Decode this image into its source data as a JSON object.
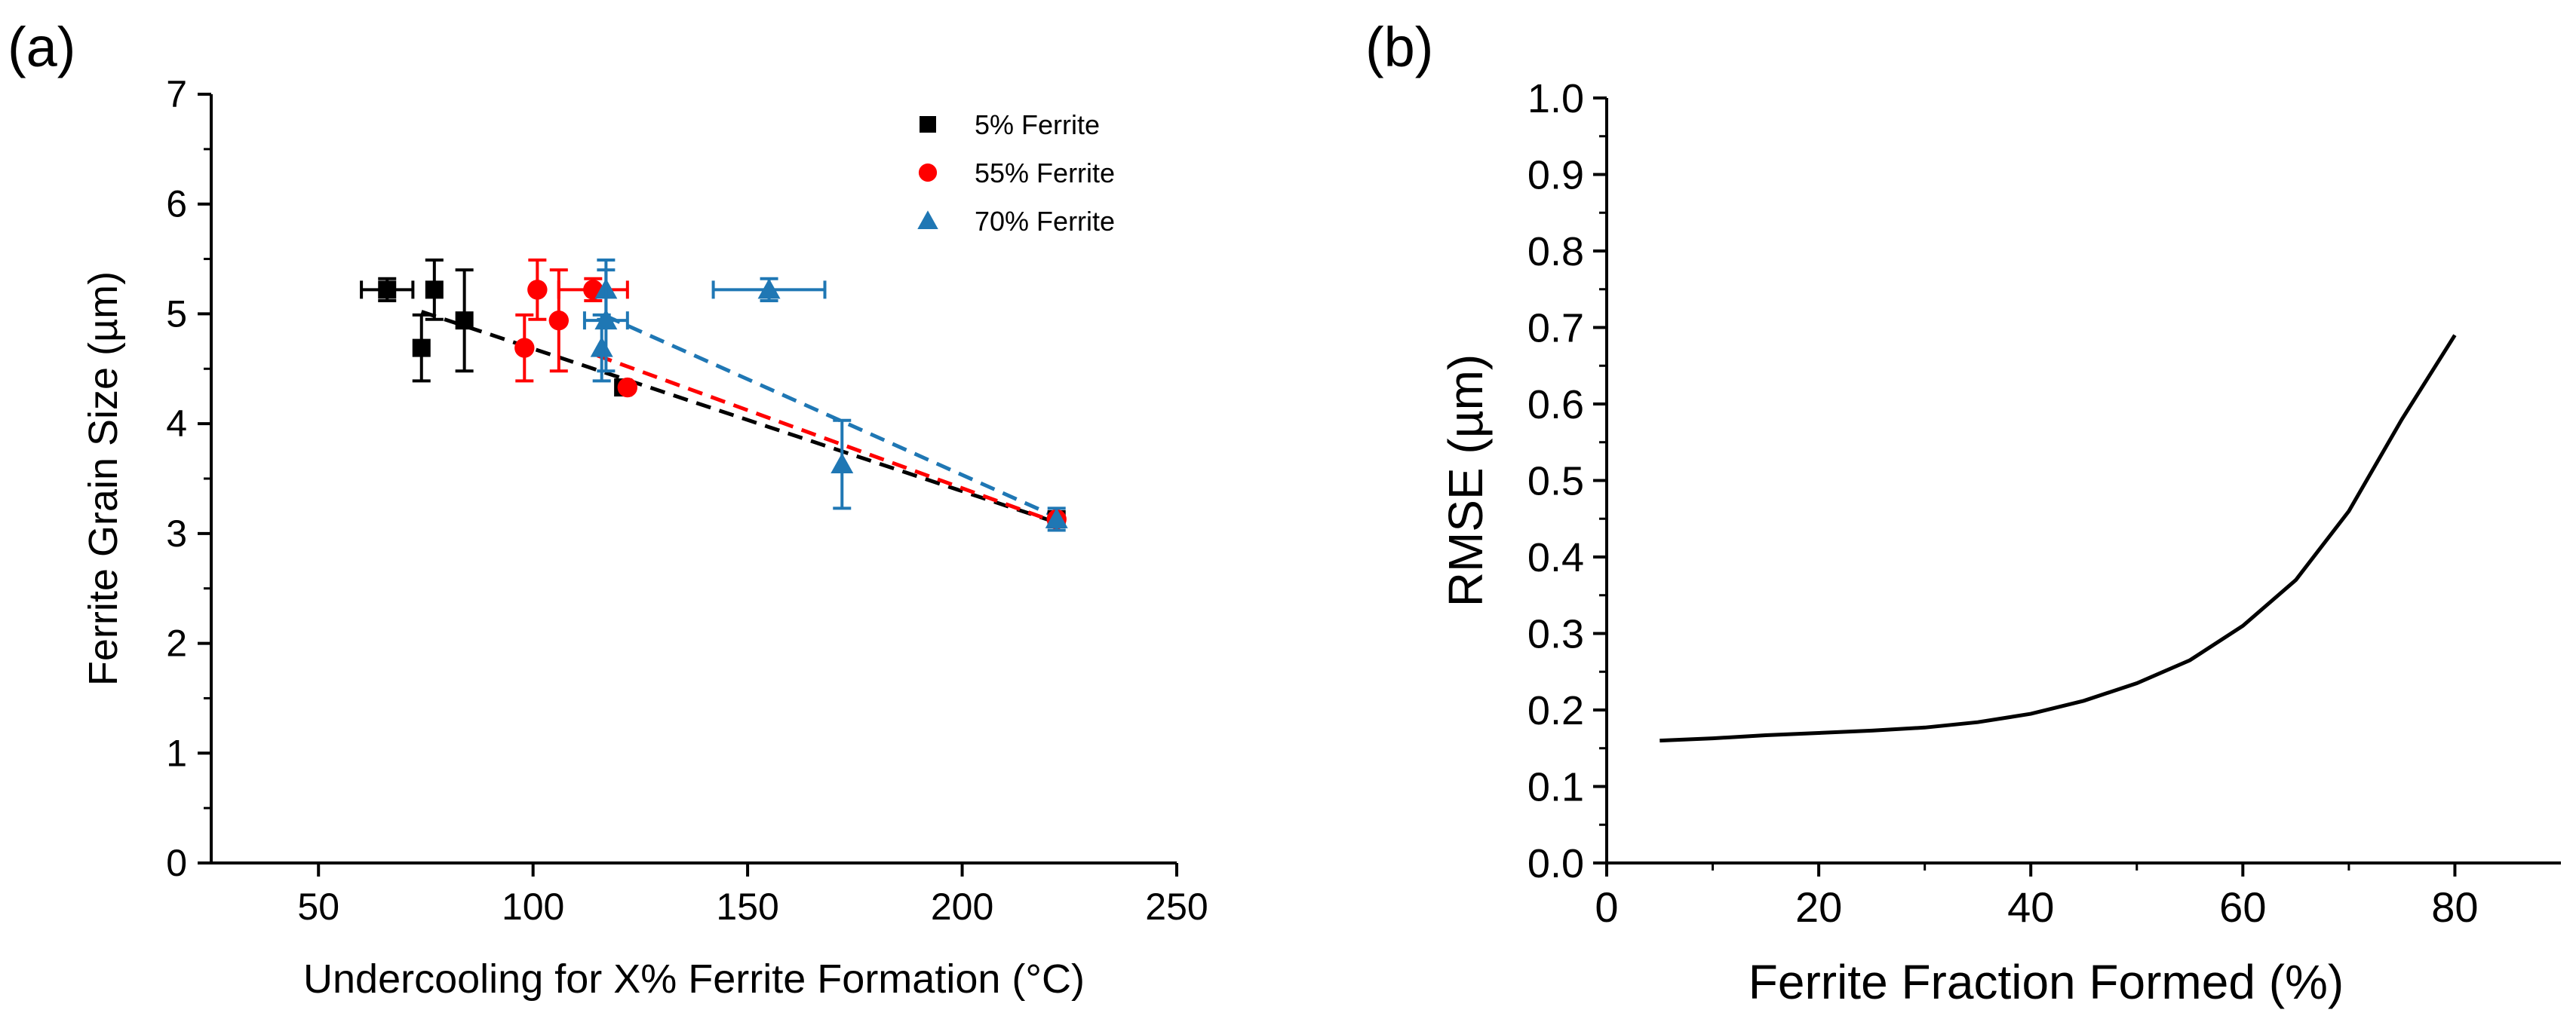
{
  "chart_data": [
    {
      "panel_label": "(a)",
      "type": "scatter",
      "title": "",
      "xlabel": "Undercooling for X% Ferrite Formation (°C)",
      "ylabel": "Ferrite Grain Size (µm)",
      "xlim": [
        25,
        250
      ],
      "ylim": [
        0,
        7
      ],
      "xticks": [
        50,
        100,
        150,
        200,
        250
      ],
      "yticks": [
        0,
        1,
        2,
        3,
        4,
        5,
        6,
        7
      ],
      "legend_position": "top-right",
      "grid": false,
      "series": [
        {
          "name": "5% Ferrite",
          "color": "#000000",
          "marker": "square",
          "points": [
            {
              "x": 66,
              "y": 5.22,
              "xerr": 6,
              "yerr": 0.1
            },
            {
              "x": 77,
              "y": 5.22,
              "xerr": 0,
              "yerr": 0.27
            },
            {
              "x": 74,
              "y": 4.69,
              "xerr": 0,
              "yerr": 0.3
            },
            {
              "x": 84,
              "y": 4.94,
              "xerr": 0,
              "yerr": 0.46
            },
            {
              "x": 121,
              "y": 4.33,
              "xerr": 0,
              "yerr": 0
            },
            {
              "x": 222,
              "y": 3.13,
              "xerr": 0,
              "yerr": 0
            }
          ],
          "fit": {
            "x": [
              74,
              222
            ],
            "y": [
              5.02,
              3.1
            ]
          }
        },
        {
          "name": "55% Ferrite",
          "color": "#ff0000",
          "marker": "circle",
          "points": [
            {
              "x": 101,
              "y": 5.22,
              "xerr": 0,
              "yerr": 0.27
            },
            {
              "x": 114,
              "y": 5.22,
              "xerr": 8,
              "yerr": 0.1
            },
            {
              "x": 98,
              "y": 4.69,
              "xerr": 0,
              "yerr": 0.3
            },
            {
              "x": 106,
              "y": 4.94,
              "xerr": 0,
              "yerr": 0.46
            },
            {
              "x": 122,
              "y": 4.33,
              "xerr": 0,
              "yerr": 0
            },
            {
              "x": 222,
              "y": 3.13,
              "xerr": 0,
              "yerr": 0
            }
          ],
          "fit": {
            "x": [
              115,
              222
            ],
            "y": [
              4.62,
              3.1
            ]
          }
        },
        {
          "name": "70% Ferrite",
          "color": "#1f77b4",
          "marker": "triangle",
          "points": [
            {
              "x": 117,
              "y": 5.22,
              "xerr": 0,
              "yerr": 0.27
            },
            {
              "x": 155,
              "y": 5.22,
              "xerr": 13,
              "yerr": 0.1
            },
            {
              "x": 116,
              "y": 4.69,
              "xerr": 0,
              "yerr": 0.3
            },
            {
              "x": 117,
              "y": 4.94,
              "xerr": 5,
              "yerr": 0.46
            },
            {
              "x": 172,
              "y": 3.63,
              "xerr": 0,
              "yerr": 0.4
            },
            {
              "x": 222,
              "y": 3.13,
              "xerr": 0,
              "yerr": 0.1
            }
          ],
          "fit": {
            "x": [
              117,
              222
            ],
            "y": [
              4.98,
              3.15
            ]
          }
        }
      ]
    },
    {
      "panel_label": "(b)",
      "type": "line",
      "title": "",
      "xlabel": "Ferrite Fraction Formed (%)",
      "ylabel": "RMSE (µm)",
      "xlim": [
        0,
        90
      ],
      "ylim": [
        0,
        1
      ],
      "xticks": [
        0,
        20,
        40,
        60,
        80
      ],
      "yticks": [
        0,
        0.1,
        0.2,
        0.3,
        0.4,
        0.5,
        0.6,
        0.7,
        0.8,
        0.9,
        1.0
      ],
      "grid": false,
      "series": [
        {
          "color": "#000000",
          "x": [
            5,
            10,
            15,
            20,
            25,
            30,
            35,
            40,
            45,
            50,
            55,
            60,
            65,
            70,
            75,
            80
          ],
          "y": [
            0.16,
            0.163,
            0.167,
            0.17,
            0.173,
            0.177,
            0.184,
            0.195,
            0.212,
            0.235,
            0.265,
            0.31,
            0.37,
            0.46,
            0.58,
            0.69
          ]
        }
      ]
    }
  ]
}
